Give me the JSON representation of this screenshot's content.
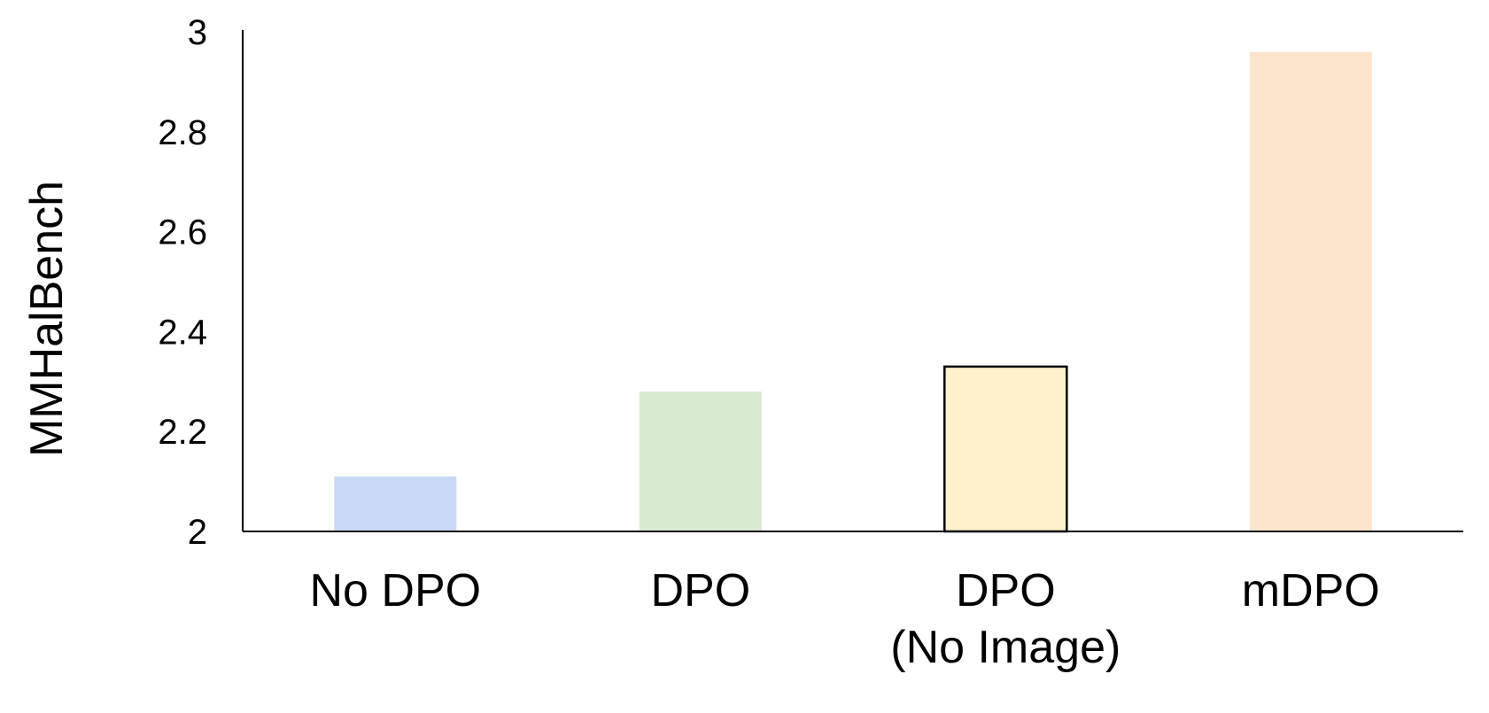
{
  "chart_data": {
    "type": "bar",
    "categories": [
      [
        "No DPO"
      ],
      [
        "DPO"
      ],
      [
        "DPO",
        "(No Image)"
      ],
      [
        "mDPO"
      ]
    ],
    "values": [
      2.11,
      2.28,
      2.33,
      2.96
    ],
    "colors": [
      "#c9d9f5",
      "#d9ead3",
      "#fff2cc",
      "#fce5cd"
    ],
    "outlined": [
      false,
      false,
      true,
      false
    ],
    "title": "",
    "xlabel": "",
    "ylabel": "MMHalBench",
    "ylim": [
      2,
      3
    ],
    "yticks": [
      2,
      2.2,
      2.4,
      2.6,
      2.8,
      3
    ],
    "ytick_labels": [
      "2",
      "2.2",
      "2.4",
      "2.6",
      "2.8",
      "3"
    ],
    "grid": false,
    "legend": "none"
  }
}
